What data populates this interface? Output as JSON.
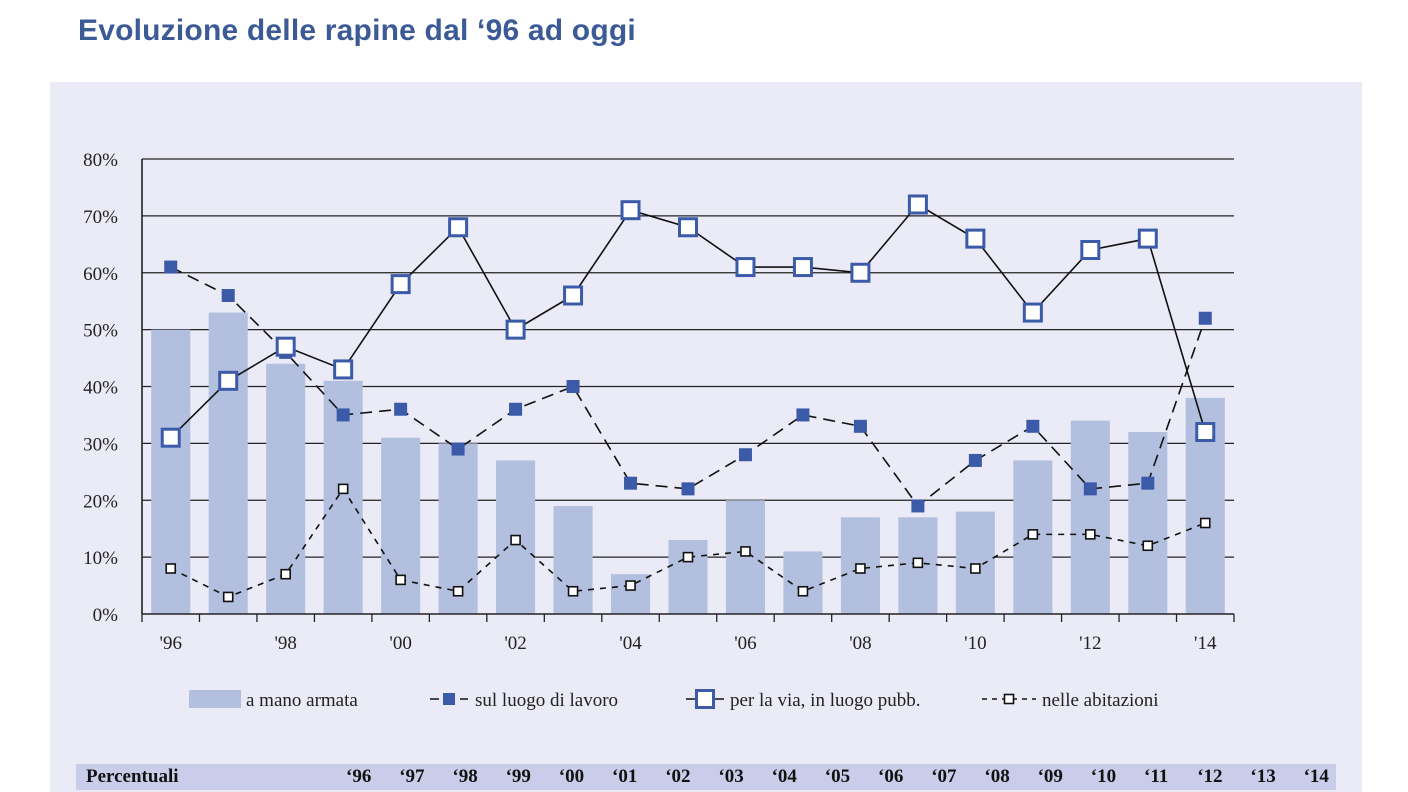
{
  "title": "Evoluzione delle rapine dal ‘96 ad oggi",
  "colors": {
    "bar": "#b3bfdf",
    "marker": "#3b5ba8",
    "line": "#111111",
    "title": "#3c5a96",
    "panel": "#ebebf7",
    "footer": "#c9cde9"
  },
  "chart_data": {
    "type": "bar",
    "categories": [
      "1996",
      "1997",
      "1998",
      "1999",
      "2000",
      "2001",
      "2002",
      "2003",
      "2004",
      "2005",
      "2006",
      "2007",
      "2008",
      "2009",
      "2010",
      "2011",
      "2012",
      "2013",
      "2014"
    ],
    "x_tick_labels": [
      "'96",
      "'98",
      "'00",
      "'02",
      "'04",
      "'06",
      "'08",
      "'10",
      "'12",
      "'14"
    ],
    "y_tick_labels": [
      "0%",
      "10%",
      "20%",
      "30%",
      "40%",
      "50%",
      "60%",
      "70%",
      "80%"
    ],
    "ylim": [
      0,
      80
    ],
    "grid": true,
    "legend_position": "bottom",
    "series": [
      {
        "name": "a mano armata",
        "kind": "bar",
        "values": [
          50,
          53,
          44,
          41,
          31,
          30,
          27,
          19,
          7,
          13,
          20,
          11,
          17,
          17,
          18,
          27,
          34,
          32,
          38
        ]
      },
      {
        "name": "sul luogo di lavoro",
        "kind": "line-dashed-filled-square",
        "values": [
          61,
          56,
          46,
          35,
          36,
          29,
          36,
          40,
          23,
          22,
          28,
          35,
          33,
          19,
          27,
          33,
          22,
          23,
          52
        ]
      },
      {
        "name": "per la via, in luogo pubb.",
        "kind": "line-solid-open-square",
        "values": [
          31,
          41,
          47,
          43,
          58,
          68,
          50,
          56,
          71,
          68,
          61,
          61,
          60,
          72,
          66,
          53,
          64,
          66,
          32
        ]
      },
      {
        "name": "nelle abitazioni",
        "kind": "line-dashed-small-open-square",
        "values": [
          8,
          3,
          7,
          22,
          6,
          4,
          13,
          4,
          5,
          10,
          11,
          4,
          8,
          9,
          8,
          14,
          14,
          12,
          16
        ]
      }
    ]
  },
  "footer": {
    "label": "Percentuali",
    "years": [
      "‘96",
      "‘97",
      "‘98",
      "‘99",
      "‘00",
      "‘01",
      "‘02",
      "‘03",
      "‘04",
      "‘05",
      "‘06",
      "‘07",
      "‘08",
      "‘09",
      "‘10",
      "‘11",
      "‘12",
      "‘13",
      "‘14"
    ]
  }
}
